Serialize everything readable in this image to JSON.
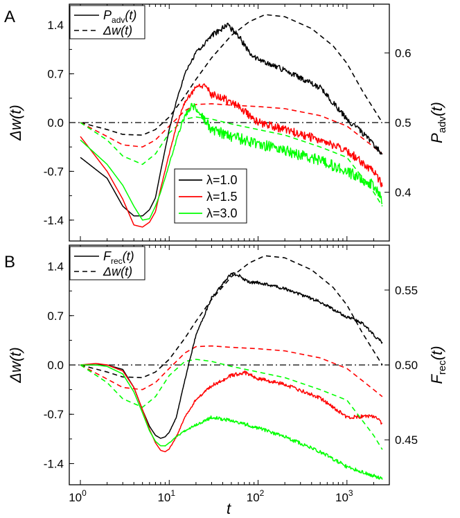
{
  "figure": {
    "panel_letters": [
      "A",
      "B"
    ],
    "x_title": "t"
  },
  "chart_data": [
    {
      "panel": "A",
      "type": "line",
      "x_scale": "log",
      "xlim": [
        0.75,
        3000
      ],
      "x_ticks": [
        1,
        10,
        100,
        1000
      ],
      "x_tick_labels": [
        [
          "10",
          "0"
        ],
        [
          "10",
          "1"
        ],
        [
          "10",
          "2"
        ],
        [
          "10",
          "3"
        ]
      ],
      "ylabel_left": "Δw(t)",
      "ylim_left": [
        -1.7,
        1.7
      ],
      "y_ticks_left": [
        1.4,
        0.7,
        0.0,
        -0.7,
        -1.4
      ],
      "y_tick_labels_left": [
        "1.4",
        "0.7",
        "0.0",
        "-0.7",
        "-1.4"
      ],
      "ylabel_right": "P_adv(t)",
      "ylim_right": [
        0.33,
        0.67
      ],
      "y_ticks_right": [
        0.6,
        0.5,
        0.4
      ],
      "y_tick_labels_right": [
        "0.6",
        "0.5",
        "0.4"
      ],
      "reference_line": {
        "axis": "left",
        "y": 0.0,
        "style": "dash-dot"
      },
      "legend_style": {
        "position": "top-left",
        "entries": [
          {
            "label_main": "P",
            "label_sub": "adv",
            "label_tail": "(t)",
            "style": "solid",
            "color": "#000000"
          },
          {
            "label_main": "Δw",
            "label_sub": "",
            "label_tail": "(t)",
            "style": "dashed",
            "color": "#000000"
          }
        ]
      },
      "legend_lambda": {
        "position": "center",
        "entries": [
          {
            "label": "λ=1.0",
            "color": "#000000"
          },
          {
            "label": "λ=1.5",
            "color": "#ff0000"
          },
          {
            "label": "λ=3.0",
            "color": "#00ff00"
          }
        ]
      },
      "series": [
        {
          "key": "w10",
          "axis": "left",
          "style": "dashed",
          "color": "#000000",
          "x": [
            1,
            2,
            3,
            5,
            7,
            10,
            15,
            20,
            30,
            50,
            80,
            120,
            200,
            400,
            700,
            1000,
            1500,
            2500
          ],
          "y": [
            0.0,
            -0.1,
            -0.17,
            -0.18,
            -0.1,
            0.08,
            0.38,
            0.62,
            0.93,
            1.25,
            1.45,
            1.55,
            1.52,
            1.35,
            1.1,
            0.85,
            0.45,
            0.0
          ]
        },
        {
          "key": "w15",
          "axis": "left",
          "style": "dashed",
          "color": "#ff0000",
          "x": [
            1,
            2,
            3,
            5,
            7,
            10,
            15,
            20,
            30,
            50,
            100,
            200,
            500,
            1000,
            2000,
            2500
          ],
          "y": [
            0.0,
            -0.2,
            -0.32,
            -0.35,
            -0.25,
            -0.05,
            0.17,
            0.26,
            0.27,
            0.25,
            0.23,
            0.2,
            0.1,
            -0.05,
            -0.35,
            -0.45
          ]
        },
        {
          "key": "w30",
          "axis": "left",
          "style": "dashed",
          "color": "#00ff00",
          "x": [
            1,
            2,
            3,
            5,
            7,
            10,
            15,
            20,
            30,
            50,
            100,
            200,
            500,
            1000,
            2000,
            2500
          ],
          "y": [
            0.0,
            -0.25,
            -0.48,
            -0.6,
            -0.45,
            -0.15,
            0.05,
            0.08,
            0.05,
            -0.02,
            -0.1,
            -0.18,
            -0.35,
            -0.5,
            -1.0,
            -1.2
          ]
        },
        {
          "key": "P10",
          "axis": "right",
          "style": "solid",
          "color": "#000000",
          "noise": 0.004,
          "x": [
            1,
            2,
            3,
            4,
            5,
            6,
            7,
            8,
            10,
            12,
            15,
            20,
            30,
            45,
            60,
            80,
            100,
            200,
            500,
            1000,
            1500,
            2500
          ],
          "y": [
            0.45,
            0.42,
            0.38,
            0.366,
            0.366,
            0.375,
            0.392,
            0.43,
            0.49,
            0.53,
            0.57,
            0.6,
            0.625,
            0.64,
            0.625,
            0.6,
            0.59,
            0.575,
            0.55,
            0.505,
            0.485,
            0.455
          ]
        },
        {
          "key": "P15",
          "axis": "right",
          "style": "solid",
          "color": "#ff0000",
          "noise": 0.006,
          "x": [
            1,
            2,
            3,
            4,
            5,
            6,
            7,
            8,
            10,
            12,
            15,
            20,
            25,
            30,
            50,
            80,
            100,
            200,
            500,
            1000,
            2000,
            2500
          ],
          "y": [
            0.48,
            0.43,
            0.39,
            0.353,
            0.35,
            0.357,
            0.372,
            0.405,
            0.455,
            0.495,
            0.53,
            0.55,
            0.555,
            0.54,
            0.53,
            0.51,
            0.5,
            0.49,
            0.475,
            0.46,
            0.43,
            0.41
          ]
        },
        {
          "key": "P30",
          "axis": "right",
          "style": "solid",
          "color": "#00ff00",
          "noise": 0.008,
          "x": [
            1,
            2,
            3,
            4,
            5,
            6,
            7,
            8,
            10,
            12,
            15,
            18,
            20,
            30,
            50,
            100,
            200,
            500,
            1000,
            2000,
            2500
          ],
          "y": [
            0.475,
            0.44,
            0.41,
            0.38,
            0.36,
            0.362,
            0.38,
            0.4,
            0.44,
            0.475,
            0.51,
            0.525,
            0.52,
            0.49,
            0.48,
            0.47,
            0.46,
            0.445,
            0.43,
            0.41,
            0.39
          ]
        }
      ]
    },
    {
      "panel": "B",
      "type": "line",
      "x_scale": "log",
      "xlim": [
        0.75,
        3000
      ],
      "x_ticks": [
        1,
        10,
        100,
        1000
      ],
      "x_tick_labels": [
        [
          "10",
          "0"
        ],
        [
          "10",
          "1"
        ],
        [
          "10",
          "2"
        ],
        [
          "10",
          "3"
        ]
      ],
      "ylabel_left": "Δw(t)",
      "ylim_left": [
        -1.7,
        1.7
      ],
      "y_ticks_left": [
        1.4,
        0.7,
        0.0,
        -0.7,
        -1.4
      ],
      "y_tick_labels_left": [
        "1.4",
        "0.7",
        "0.0",
        "-0.7",
        "-1.4"
      ],
      "ylabel_right": "F_rec(t)",
      "ylim_right": [
        0.42,
        0.58
      ],
      "y_ticks_right": [
        0.55,
        0.5,
        0.45
      ],
      "y_tick_labels_right": [
        "0.55",
        "0.50",
        "0.45"
      ],
      "reference_line": {
        "axis": "left",
        "y": 0.0,
        "style": "dash-dot"
      },
      "legend_style": {
        "position": "top-left",
        "entries": [
          {
            "label_main": "F",
            "label_sub": "rec",
            "label_tail": "(t)",
            "style": "solid",
            "color": "#000000"
          },
          {
            "label_main": "Δw",
            "label_sub": "",
            "label_tail": "(t)",
            "style": "dashed",
            "color": "#000000"
          }
        ]
      },
      "series": [
        {
          "key": "w10",
          "axis": "left",
          "style": "dashed",
          "color": "#000000",
          "x": [
            1,
            2,
            3,
            5,
            7,
            10,
            15,
            20,
            30,
            50,
            80,
            120,
            200,
            400,
            700,
            1000,
            1500,
            2500
          ],
          "y": [
            0.0,
            -0.1,
            -0.17,
            -0.18,
            -0.1,
            0.08,
            0.38,
            0.62,
            0.93,
            1.25,
            1.45,
            1.55,
            1.52,
            1.35,
            1.1,
            0.85,
            0.45,
            0.0
          ]
        },
        {
          "key": "w15",
          "axis": "left",
          "style": "dashed",
          "color": "#ff0000",
          "x": [
            1,
            2,
            3,
            5,
            7,
            10,
            15,
            20,
            30,
            50,
            100,
            200,
            500,
            1000,
            2000,
            2500
          ],
          "y": [
            0.0,
            -0.2,
            -0.32,
            -0.35,
            -0.25,
            -0.05,
            0.17,
            0.26,
            0.27,
            0.25,
            0.23,
            0.2,
            0.1,
            -0.05,
            -0.35,
            -0.45
          ]
        },
        {
          "key": "w30",
          "axis": "left",
          "style": "dashed",
          "color": "#00ff00",
          "x": [
            1,
            2,
            3,
            5,
            7,
            10,
            15,
            20,
            30,
            50,
            100,
            200,
            500,
            1000,
            2000,
            2500
          ],
          "y": [
            0.0,
            -0.25,
            -0.48,
            -0.6,
            -0.45,
            -0.15,
            0.05,
            0.08,
            0.05,
            -0.02,
            -0.1,
            -0.18,
            -0.35,
            -0.5,
            -1.0,
            -1.2
          ]
        },
        {
          "key": "F10",
          "axis": "right",
          "style": "solid",
          "color": "#000000",
          "noise": 0.001,
          "x": [
            1,
            1.5,
            2,
            3,
            4,
            5,
            6,
            7,
            8,
            9,
            10,
            12,
            15,
            20,
            30,
            50,
            60,
            80,
            100,
            200,
            500,
            1000,
            1500,
            2000,
            2500
          ],
          "y": [
            0.5,
            0.5,
            0.5,
            0.497,
            0.485,
            0.47,
            0.459,
            0.453,
            0.451,
            0.452,
            0.455,
            0.465,
            0.49,
            0.52,
            0.545,
            0.561,
            0.56,
            0.555,
            0.555,
            0.551,
            0.542,
            0.532,
            0.528,
            0.52,
            0.515
          ]
        },
        {
          "key": "F15",
          "axis": "right",
          "style": "solid",
          "color": "#ff0000",
          "noise": 0.0012,
          "x": [
            1,
            1.5,
            2,
            3,
            4,
            5,
            6,
            7,
            8,
            9,
            10,
            12,
            15,
            20,
            30,
            50,
            70,
            100,
            200,
            500,
            1000,
            2000,
            2500
          ],
          "y": [
            0.5,
            0.501,
            0.5,
            0.496,
            0.485,
            0.47,
            0.457,
            0.448,
            0.443,
            0.442,
            0.444,
            0.452,
            0.465,
            0.477,
            0.486,
            0.493,
            0.495,
            0.491,
            0.487,
            0.478,
            0.465,
            0.466,
            0.461
          ]
        },
        {
          "key": "F30",
          "axis": "right",
          "style": "solid",
          "color": "#00ff00",
          "noise": 0.0012,
          "x": [
            1,
            1.5,
            2,
            3,
            4,
            5,
            6,
            7,
            8,
            9,
            10,
            12,
            15,
            20,
            30,
            50,
            100,
            200,
            500,
            1000,
            2000,
            2500
          ],
          "y": [
            0.5,
            0.5,
            0.499,
            0.494,
            0.482,
            0.468,
            0.456,
            0.449,
            0.446,
            0.446,
            0.448,
            0.452,
            0.456,
            0.46,
            0.465,
            0.463,
            0.458,
            0.452,
            0.442,
            0.432,
            0.426,
            0.424
          ]
        }
      ]
    }
  ]
}
